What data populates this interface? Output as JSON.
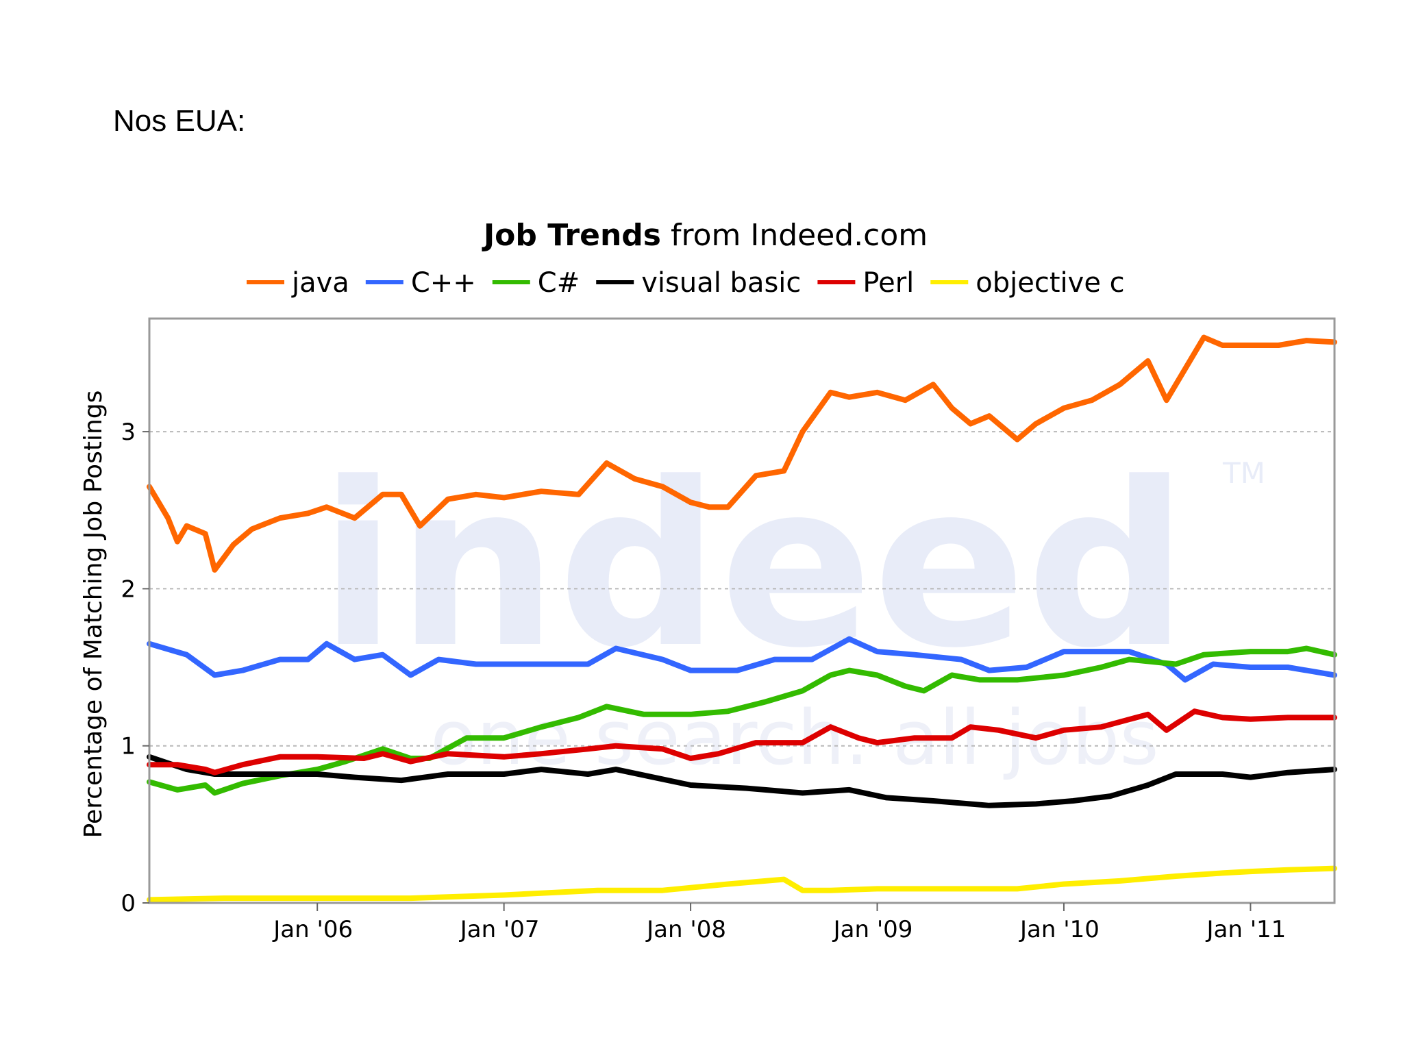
{
  "slide": {
    "heading": "Nos EUA:"
  },
  "chart_data": {
    "type": "line",
    "title_bold": "Job Trends",
    "title_rest": " from Indeed.com",
    "ylabel": "Percentage of Matching Job Postings",
    "xlabel": "",
    "ylim": [
      0,
      3.72
    ],
    "xlim": [
      2005.1,
      2011.45
    ],
    "yticks": [
      0,
      1,
      2,
      3
    ],
    "xticks": [
      {
        "label": "Jan '06",
        "value": 2006.0
      },
      {
        "label": "Jan '07",
        "value": 2007.0
      },
      {
        "label": "Jan '08",
        "value": 2008.0
      },
      {
        "label": "Jan '09",
        "value": 2009.0
      },
      {
        "label": "Jan '10",
        "value": 2010.0
      },
      {
        "label": "Jan '11",
        "value": 2011.0
      }
    ],
    "grid": true,
    "legend_position": "top",
    "watermark": {
      "logo": "indeed",
      "tagline": "one search. all jobs",
      "tm": "TM"
    },
    "series": [
      {
        "name": "java",
        "color": "#ff6600",
        "x": [
          2005.1,
          2005.2,
          2005.25,
          2005.3,
          2005.4,
          2005.45,
          2005.55,
          2005.65,
          2005.8,
          2005.95,
          2006.05,
          2006.2,
          2006.35,
          2006.45,
          2006.55,
          2006.7,
          2006.85,
          2007.0,
          2007.2,
          2007.4,
          2007.55,
          2007.7,
          2007.85,
          2008.0,
          2008.1,
          2008.2,
          2008.35,
          2008.5,
          2008.6,
          2008.75,
          2008.85,
          2009.0,
          2009.15,
          2009.3,
          2009.4,
          2009.5,
          2009.6,
          2009.75,
          2009.85,
          2010.0,
          2010.15,
          2010.3,
          2010.45,
          2010.55,
          2010.65,
          2010.75,
          2010.85,
          2011.0,
          2011.15,
          2011.3,
          2011.45
        ],
        "values": [
          2.65,
          2.45,
          2.3,
          2.4,
          2.35,
          2.12,
          2.28,
          2.38,
          2.45,
          2.48,
          2.52,
          2.45,
          2.6,
          2.6,
          2.4,
          2.57,
          2.6,
          2.58,
          2.62,
          2.6,
          2.8,
          2.7,
          2.65,
          2.55,
          2.52,
          2.52,
          2.72,
          2.75,
          3.0,
          3.25,
          3.22,
          3.25,
          3.2,
          3.3,
          3.15,
          3.05,
          3.1,
          2.95,
          3.05,
          3.15,
          3.2,
          3.3,
          3.45,
          3.2,
          3.4,
          3.6,
          3.55,
          3.55,
          3.55,
          3.58,
          3.57
        ]
      },
      {
        "name": "C++",
        "color": "#3366ff",
        "x": [
          2005.1,
          2005.3,
          2005.45,
          2005.6,
          2005.8,
          2005.95,
          2006.05,
          2006.2,
          2006.35,
          2006.5,
          2006.65,
          2006.85,
          2007.0,
          2007.2,
          2007.45,
          2007.6,
          2007.85,
          2008.0,
          2008.25,
          2008.45,
          2008.65,
          2008.85,
          2009.0,
          2009.2,
          2009.45,
          2009.6,
          2009.8,
          2010.0,
          2010.2,
          2010.35,
          2010.55,
          2010.65,
          2010.8,
          2011.0,
          2011.2,
          2011.45
        ],
        "values": [
          1.65,
          1.58,
          1.45,
          1.48,
          1.55,
          1.55,
          1.65,
          1.55,
          1.58,
          1.45,
          1.55,
          1.52,
          1.52,
          1.52,
          1.52,
          1.62,
          1.55,
          1.48,
          1.48,
          1.55,
          1.55,
          1.68,
          1.6,
          1.58,
          1.55,
          1.48,
          1.5,
          1.6,
          1.6,
          1.6,
          1.52,
          1.42,
          1.52,
          1.5,
          1.5,
          1.45
        ]
      },
      {
        "name": "C#",
        "color": "#33bb00",
        "x": [
          2005.1,
          2005.25,
          2005.4,
          2005.45,
          2005.6,
          2005.8,
          2006.0,
          2006.15,
          2006.35,
          2006.5,
          2006.6,
          2006.8,
          2007.0,
          2007.2,
          2007.4,
          2007.55,
          2007.75,
          2008.0,
          2008.2,
          2008.4,
          2008.6,
          2008.75,
          2008.85,
          2009.0,
          2009.15,
          2009.25,
          2009.4,
          2009.55,
          2009.75,
          2010.0,
          2010.2,
          2010.35,
          2010.6,
          2010.75,
          2011.0,
          2011.2,
          2011.3,
          2011.45
        ],
        "values": [
          0.77,
          0.72,
          0.75,
          0.7,
          0.76,
          0.81,
          0.85,
          0.9,
          0.98,
          0.92,
          0.92,
          1.05,
          1.05,
          1.12,
          1.18,
          1.25,
          1.2,
          1.2,
          1.22,
          1.28,
          1.35,
          1.45,
          1.48,
          1.45,
          1.38,
          1.35,
          1.45,
          1.42,
          1.42,
          1.45,
          1.5,
          1.55,
          1.52,
          1.58,
          1.6,
          1.6,
          1.62,
          1.58
        ]
      },
      {
        "name": "visual basic",
        "color": "#000000",
        "x": [
          2005.1,
          2005.3,
          2005.45,
          2005.6,
          2005.8,
          2006.0,
          2006.2,
          2006.45,
          2006.7,
          2007.0,
          2007.2,
          2007.45,
          2007.6,
          2007.8,
          2008.0,
          2008.3,
          2008.6,
          2008.85,
          2009.05,
          2009.3,
          2009.6,
          2009.85,
          2010.05,
          2010.25,
          2010.45,
          2010.6,
          2010.85,
          2011.0,
          2011.2,
          2011.45
        ],
        "values": [
          0.93,
          0.85,
          0.82,
          0.82,
          0.82,
          0.82,
          0.8,
          0.78,
          0.82,
          0.82,
          0.85,
          0.82,
          0.85,
          0.8,
          0.75,
          0.73,
          0.7,
          0.72,
          0.67,
          0.65,
          0.62,
          0.63,
          0.65,
          0.68,
          0.75,
          0.82,
          0.82,
          0.8,
          0.83,
          0.85
        ]
      },
      {
        "name": "Perl",
        "color": "#dd0000",
        "x": [
          2005.1,
          2005.25,
          2005.4,
          2005.45,
          2005.6,
          2005.8,
          2006.0,
          2006.25,
          2006.35,
          2006.5,
          2006.7,
          2007.0,
          2007.2,
          2007.45,
          2007.6,
          2007.85,
          2008.0,
          2008.15,
          2008.35,
          2008.6,
          2008.75,
          2008.9,
          2009.0,
          2009.2,
          2009.4,
          2009.5,
          2009.65,
          2009.85,
          2010.0,
          2010.2,
          2010.45,
          2010.55,
          2010.7,
          2010.85,
          2011.0,
          2011.2,
          2011.45
        ],
        "values": [
          0.88,
          0.88,
          0.85,
          0.83,
          0.88,
          0.93,
          0.93,
          0.92,
          0.95,
          0.9,
          0.95,
          0.93,
          0.95,
          0.98,
          1.0,
          0.98,
          0.92,
          0.95,
          1.02,
          1.02,
          1.12,
          1.05,
          1.02,
          1.05,
          1.05,
          1.12,
          1.1,
          1.05,
          1.1,
          1.12,
          1.2,
          1.1,
          1.22,
          1.18,
          1.17,
          1.18,
          1.18
        ]
      },
      {
        "name": "objective c",
        "color": "#ffee00",
        "x": [
          2005.1,
          2005.5,
          2006.0,
          2006.5,
          2007.0,
          2007.5,
          2007.85,
          2008.2,
          2008.5,
          2008.6,
          2008.75,
          2009.0,
          2009.5,
          2009.75,
          2010.0,
          2010.3,
          2010.6,
          2010.85,
          2011.0,
          2011.2,
          2011.45
        ],
        "values": [
          0.02,
          0.03,
          0.03,
          0.03,
          0.05,
          0.08,
          0.08,
          0.12,
          0.15,
          0.08,
          0.08,
          0.09,
          0.09,
          0.09,
          0.12,
          0.14,
          0.17,
          0.19,
          0.2,
          0.21,
          0.22
        ]
      }
    ]
  }
}
